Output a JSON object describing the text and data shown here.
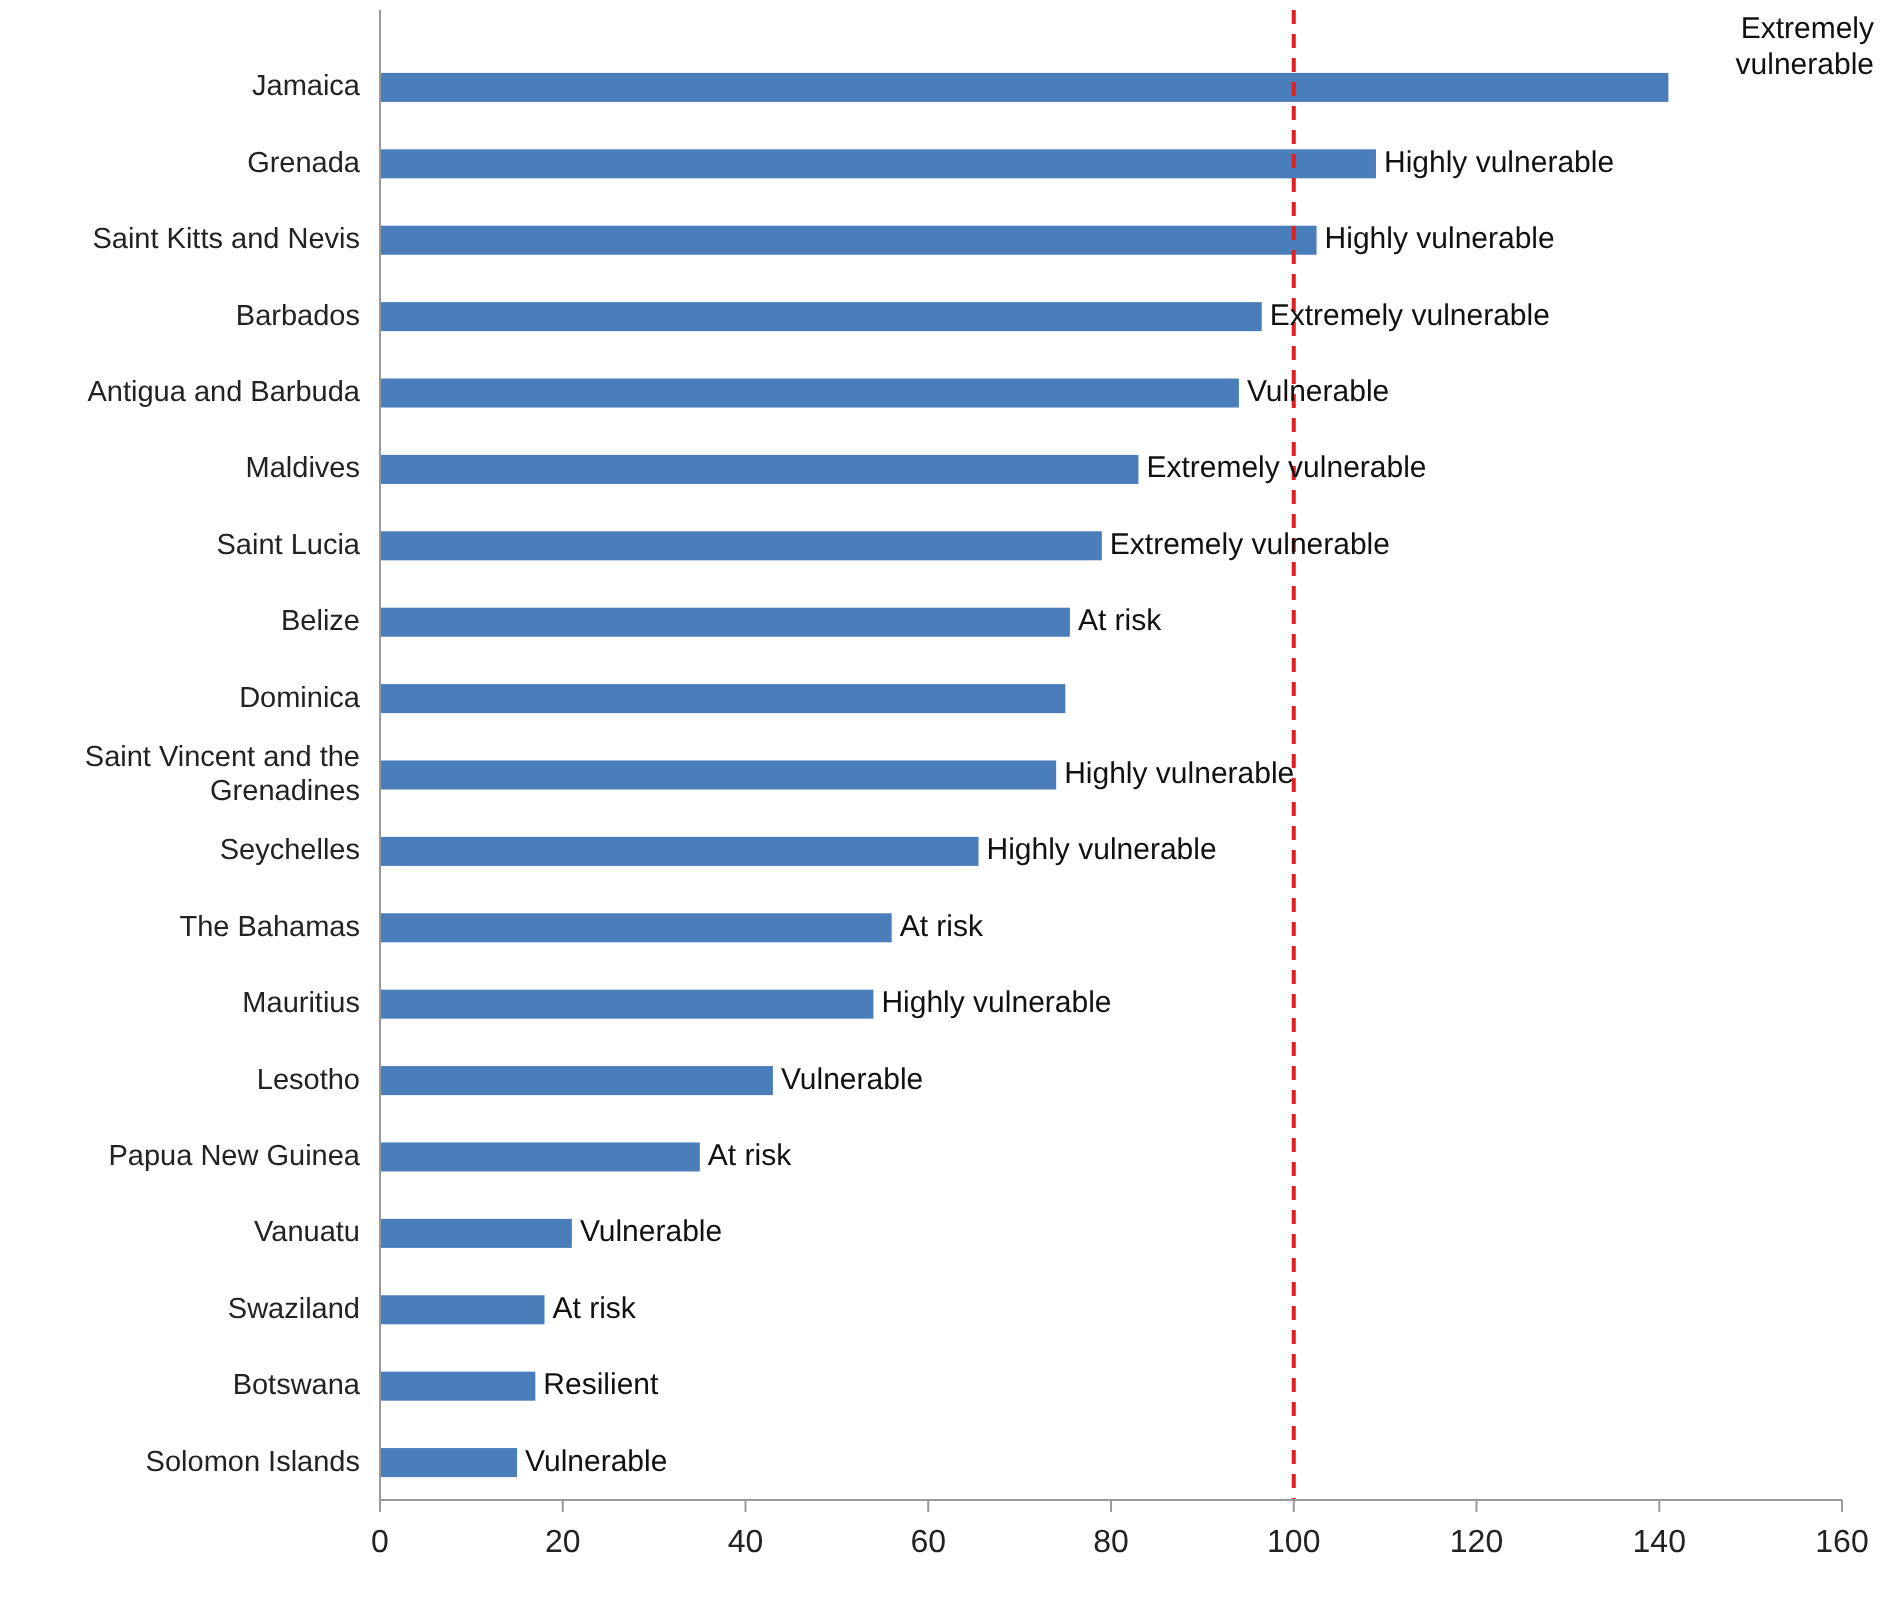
{
  "chart_data": {
    "type": "bar",
    "orientation": "horizontal",
    "categories": [
      "Jamaica",
      "Grenada",
      "Saint Kitts and Nevis",
      "Barbados",
      "Antigua and Barbuda",
      "Maldives",
      "Saint Lucia",
      "Belize",
      "Dominica",
      "Saint Vincent and the Grenadines",
      "Seychelles",
      "The Bahamas",
      "Mauritius",
      "Lesotho",
      "Papua New Guinea",
      "Vanuatu",
      "Swaziland",
      "Botswana",
      "Solomon Islands"
    ],
    "values": [
      141,
      109,
      102.5,
      96.5,
      94,
      83,
      79,
      75.5,
      75,
      74,
      65.5,
      56,
      54,
      43,
      35,
      21,
      18,
      17,
      15
    ],
    "value_labels": [
      "Extremely vulnerable",
      "Highly vulnerable",
      "Highly vulnerable",
      "Extremely vulnerable",
      "Vulnerable",
      "Extremely vulnerable",
      "Extremely vulnerable",
      "At risk",
      null,
      "Highly vulnerable",
      "Highly vulnerable",
      "At risk",
      "Highly vulnerable",
      "Vulnerable",
      "At risk",
      "Vulnerable",
      "At risk",
      "Resilient",
      "Vulnerable"
    ],
    "color": "#4a7ebb",
    "xlim": [
      0,
      160
    ],
    "xticks": [
      0,
      20,
      40,
      60,
      80,
      100,
      120,
      140,
      160
    ],
    "ref_lines": [
      {
        "axis": "x",
        "value": 100,
        "color": "#e02020",
        "line_style": "dashed"
      }
    ],
    "grid": false
  }
}
